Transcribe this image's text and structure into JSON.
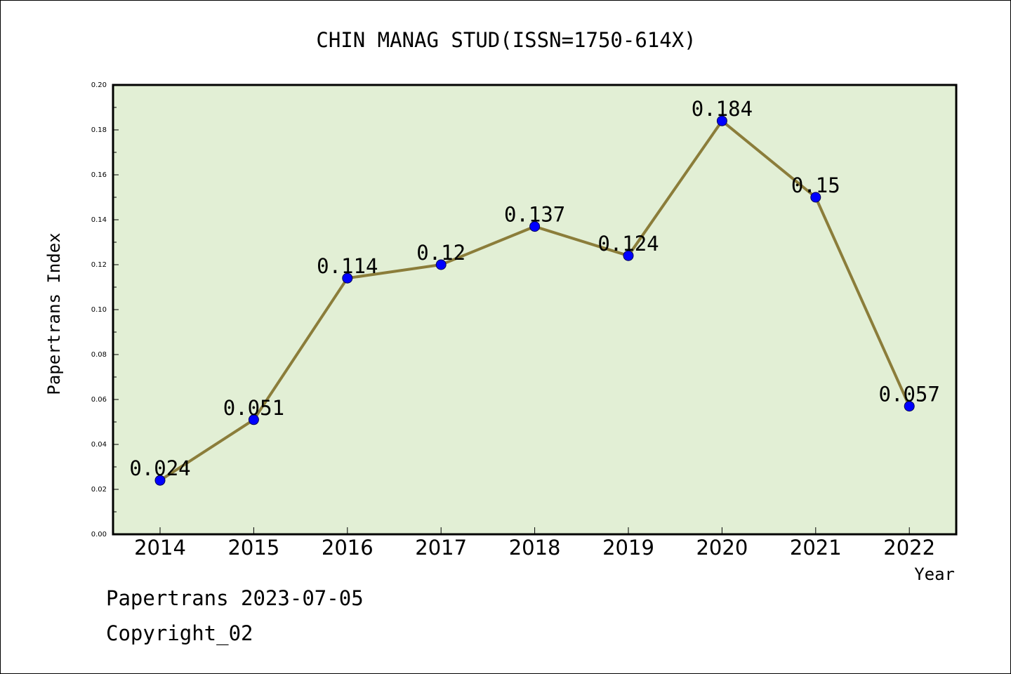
{
  "chart_data": {
    "type": "line",
    "title": "CHIN MANAG STUD(ISSN=1750-614X)",
    "xlabel": "Year",
    "ylabel": "Papertrans Index",
    "categories": [
      "2014",
      "2015",
      "2016",
      "2017",
      "2018",
      "2019",
      "2020",
      "2021",
      "2022"
    ],
    "series": [
      {
        "values": [
          0.024,
          0.051,
          0.114,
          0.12,
          0.137,
          0.124,
          0.184,
          0.15,
          0.057
        ],
        "labels": [
          "0.024",
          "0.051",
          "0.114",
          "0.12",
          "0.137",
          "0.124",
          "0.184",
          "0.15",
          "0.057"
        ]
      }
    ],
    "ylim": [
      0,
      0.2
    ],
    "yticks": [
      "0.00",
      "0.02",
      "0.04",
      "0.06",
      "0.08",
      "0.10",
      "0.12",
      "0.14",
      "0.16",
      "0.18",
      "0.20"
    ],
    "grid": false,
    "colors": {
      "plot_background": "#e2efd5",
      "line": "#8b7d3a",
      "marker": "#0000ff"
    }
  },
  "footer": {
    "line1": "Papertrans 2023-07-05",
    "line2": "Copyright_02"
  }
}
